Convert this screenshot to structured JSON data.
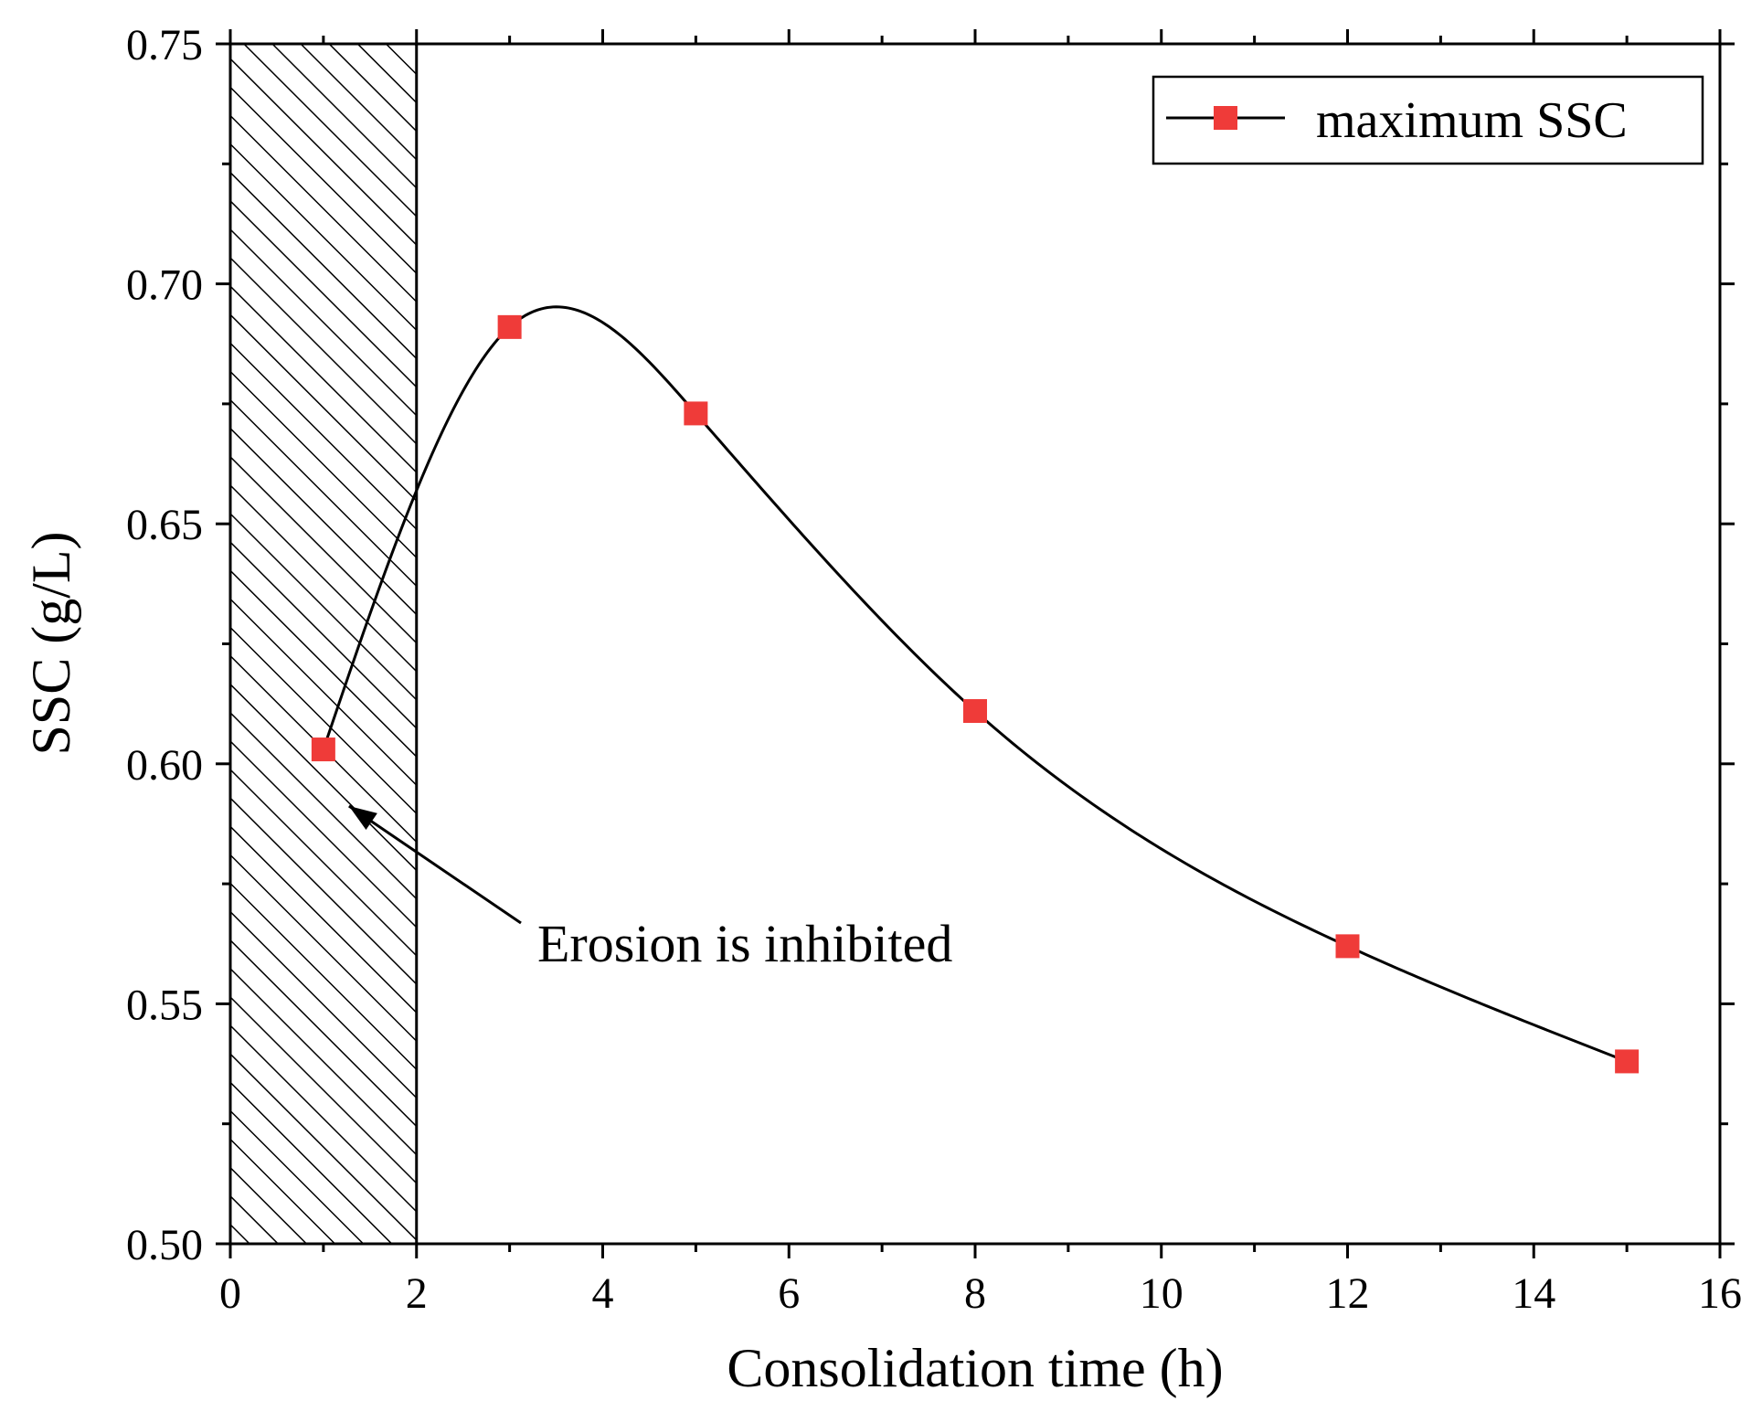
{
  "chart_data": {
    "type": "line",
    "title": "",
    "xlabel": "Consolidation time (h)",
    "ylabel": "SSC (g/L)",
    "xlim": [
      0,
      16
    ],
    "ylim": [
      0.5,
      0.75
    ],
    "x_ticks": [
      0,
      2,
      4,
      6,
      8,
      10,
      12,
      14,
      16
    ],
    "x_tick_labels": [
      "0",
      "2",
      "4",
      "6",
      "8",
      "10",
      "12",
      "14",
      "16"
    ],
    "y_ticks": [
      0.5,
      0.55,
      0.6,
      0.65,
      0.7,
      0.75
    ],
    "y_tick_labels": [
      "0.50",
      "0.55",
      "0.60",
      "0.65",
      "0.70",
      "0.75"
    ],
    "grid": false,
    "legend_position": "top-right",
    "series": [
      {
        "name": "maximum SSC",
        "x": [
          1,
          3,
          5,
          8,
          12,
          15
        ],
        "values": [
          0.603,
          0.691,
          0.673,
          0.611,
          0.562,
          0.538
        ],
        "line_color": "#000000",
        "marker": "square",
        "marker_color": "#ef3b39",
        "smoothed": true
      }
    ],
    "shaded_region": {
      "x_start": 0,
      "x_end": 2,
      "pattern": "diagonal-hatch"
    },
    "annotation": {
      "text": "Erosion is inhibited",
      "points_to": {
        "x": 1,
        "y": 0.603
      }
    }
  }
}
